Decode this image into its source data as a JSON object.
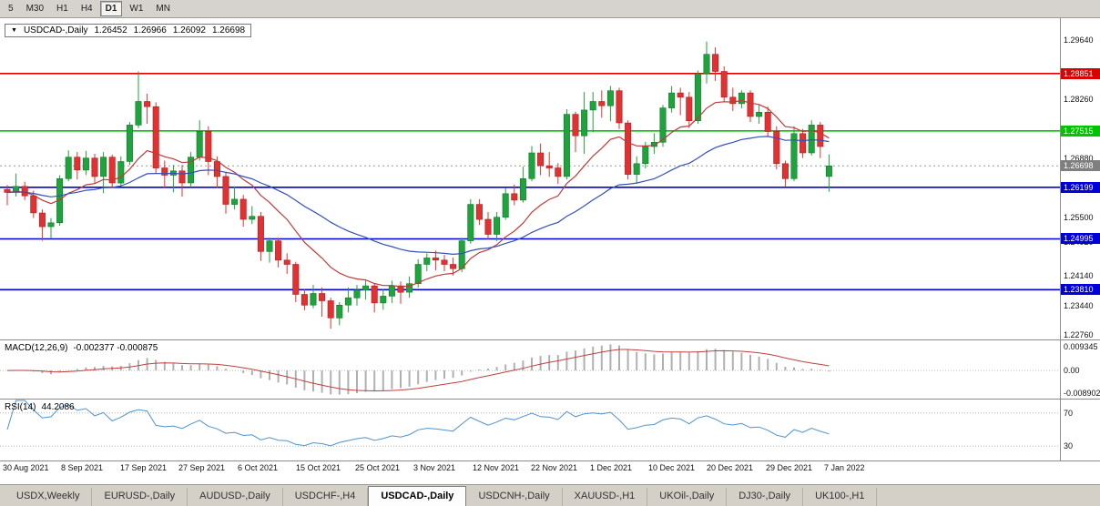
{
  "toolbar": {
    "timeframes": [
      {
        "label": "5",
        "active": false
      },
      {
        "label": "M30",
        "active": false
      },
      {
        "label": "H1",
        "active": false
      },
      {
        "label": "H4",
        "active": false
      },
      {
        "label": "D1",
        "active": true
      },
      {
        "label": "W1",
        "active": false
      },
      {
        "label": "MN",
        "active": false
      }
    ]
  },
  "chart_header": {
    "symbol": "USDCAD-,Daily",
    "open": "1.26452",
    "high": "1.26966",
    "low": "1.26092",
    "close": "1.26698"
  },
  "tabs": {
    "items": [
      "USDX,Weekly",
      "EURUSD-,Daily",
      "AUDUSD-,Daily",
      "USDCHF-,H4",
      "USDCAD-,Daily",
      "USDCNH-,Daily",
      "XAUUSD-,H1",
      "UKOil-,Daily",
      "DJ30-,Daily",
      "UK100-,H1"
    ],
    "active_index": 4
  },
  "chart_data": {
    "type": "candlestick",
    "title": "USDCAD-,Daily",
    "price_range": [
      1.2267,
      1.301
    ],
    "price_ticks": [
      "1.29640",
      "1.28260",
      "1.26880",
      "1.25500",
      "1.24920",
      "1.24140",
      "1.23440",
      "1.22760"
    ],
    "x_labels": [
      "30 Aug 2021",
      "8 Sep 2021",
      "17 Sep 2021",
      "27 Sep 2021",
      "6 Oct 2021",
      "15 Oct 2021",
      "25 Oct 2021",
      "3 Nov 2021",
      "12 Nov 2021",
      "22 Nov 2021",
      "1 Dec 2021",
      "10 Dec 2021",
      "20 Dec 2021",
      "29 Dec 2021",
      "7 Jan 2022"
    ],
    "horizontal_lines": [
      {
        "price": 1.28851,
        "label": "1.28851",
        "color": "#dd0000"
      },
      {
        "price": 1.27515,
        "label": "1.27515",
        "color": "#00c400"
      },
      {
        "price": 1.26199,
        "label": "1.26199",
        "color": "#0000dd"
      },
      {
        "price": 1.24995,
        "label": "1.24995",
        "color": "#0000dd"
      },
      {
        "price": 1.2381,
        "label": "1.23810",
        "color": "#0000dd"
      }
    ],
    "current_price": {
      "value": 1.26698,
      "label": "1.26698",
      "color": "#7f7f7f"
    },
    "colors": {
      "up": "#1fa33c",
      "up_stroke": "#127a29",
      "down": "#e03232",
      "down_stroke": "#b01b1b"
    },
    "overlays": [
      {
        "name": "ma-fast",
        "type": "ema",
        "period": 12,
        "color": "#c03a3a"
      },
      {
        "name": "ma-slow",
        "type": "ema",
        "period": 34,
        "color": "#3352b5"
      }
    ],
    "macd": {
      "label": "MACD(12,26,9)",
      "values": "-0.002377 -0.000875",
      "fast": 12,
      "slow": 26,
      "signal": 9,
      "axis_max": "0.009345",
      "axis_zero": "0.00",
      "axis_min": "-0.008902",
      "hist_color": "#b0b0b0",
      "signal_color": "#c04040"
    },
    "rsi": {
      "label": "RSI(14)",
      "value": "44.2086",
      "period": 14,
      "levels": [
        "70",
        "30"
      ],
      "color": "#4f94cd"
    },
    "candles": [
      [
        1.2615,
        1.2625,
        1.2578,
        1.2608
      ],
      [
        1.2608,
        1.2652,
        1.2598,
        1.2622
      ],
      [
        1.2622,
        1.2633,
        1.259,
        1.26
      ],
      [
        1.26,
        1.2612,
        1.2548,
        1.256
      ],
      [
        1.256,
        1.2568,
        1.2495,
        1.2528
      ],
      [
        1.2528,
        1.2548,
        1.25,
        1.2537
      ],
      [
        1.2537,
        1.2648,
        1.253,
        1.264
      ],
      [
        1.264,
        1.2706,
        1.2634,
        1.269
      ],
      [
        1.269,
        1.2702,
        1.2638,
        1.266
      ],
      [
        1.266,
        1.2705,
        1.2648,
        1.2688
      ],
      [
        1.2688,
        1.2698,
        1.2628,
        1.2645
      ],
      [
        1.2645,
        1.2702,
        1.2606,
        1.269
      ],
      [
        1.269,
        1.2696,
        1.2618,
        1.263
      ],
      [
        1.263,
        1.2692,
        1.2622,
        1.268
      ],
      [
        1.268,
        1.2772,
        1.2672,
        1.2765
      ],
      [
        1.2765,
        1.289,
        1.2758,
        1.282
      ],
      [
        1.282,
        1.2838,
        1.2768,
        1.2808
      ],
      [
        1.2808,
        1.2818,
        1.2652,
        1.2665
      ],
      [
        1.2665,
        1.2682,
        1.2618,
        1.2648
      ],
      [
        1.2648,
        1.2672,
        1.2608,
        1.2658
      ],
      [
        1.2658,
        1.2672,
        1.2598,
        1.263
      ],
      [
        1.263,
        1.2702,
        1.262,
        1.269
      ],
      [
        1.269,
        1.2776,
        1.2682,
        1.275
      ],
      [
        1.275,
        1.2762,
        1.2648,
        1.268
      ],
      [
        1.268,
        1.2692,
        1.2618,
        1.2645
      ],
      [
        1.2645,
        1.2656,
        1.2558,
        1.258
      ],
      [
        1.258,
        1.2622,
        1.2568,
        1.2592
      ],
      [
        1.2592,
        1.2602,
        1.2528,
        1.2545
      ],
      [
        1.2545,
        1.2576,
        1.2534,
        1.2552
      ],
      [
        1.2552,
        1.2562,
        1.2448,
        1.247
      ],
      [
        1.247,
        1.2502,
        1.2444,
        1.2495
      ],
      [
        1.2495,
        1.2502,
        1.2433,
        1.245
      ],
      [
        1.245,
        1.2466,
        1.2418,
        1.244
      ],
      [
        1.244,
        1.2446,
        1.2352,
        1.237
      ],
      [
        1.237,
        1.2382,
        1.2333,
        1.2345
      ],
      [
        1.2345,
        1.2392,
        1.2338,
        1.2372
      ],
      [
        1.2372,
        1.2386,
        1.2318,
        1.2355
      ],
      [
        1.2355,
        1.2362,
        1.229,
        1.2315
      ],
      [
        1.2315,
        1.2352,
        1.2298,
        1.2345
      ],
      [
        1.2345,
        1.2386,
        1.2328,
        1.2362
      ],
      [
        1.2362,
        1.2392,
        1.2344,
        1.238
      ],
      [
        1.238,
        1.2402,
        1.2358,
        1.239
      ],
      [
        1.239,
        1.2396,
        1.2328,
        1.235
      ],
      [
        1.235,
        1.2382,
        1.2334,
        1.2366
      ],
      [
        1.2366,
        1.2402,
        1.235,
        1.239
      ],
      [
        1.239,
        1.24,
        1.2348,
        1.2375
      ],
      [
        1.2375,
        1.2412,
        1.2362,
        1.2395
      ],
      [
        1.2395,
        1.2452,
        1.2386,
        1.244
      ],
      [
        1.244,
        1.2466,
        1.2424,
        1.2455
      ],
      [
        1.2455,
        1.2472,
        1.2426,
        1.245
      ],
      [
        1.245,
        1.2462,
        1.2424,
        1.244
      ],
      [
        1.244,
        1.2456,
        1.2414,
        1.243
      ],
      [
        1.243,
        1.2502,
        1.2422,
        1.2495
      ],
      [
        1.2495,
        1.2592,
        1.2488,
        1.258
      ],
      [
        1.258,
        1.2592,
        1.2532,
        1.2545
      ],
      [
        1.2545,
        1.2562,
        1.2498,
        1.251
      ],
      [
        1.251,
        1.2562,
        1.2494,
        1.255
      ],
      [
        1.255,
        1.2618,
        1.2544,
        1.2605
      ],
      [
        1.2605,
        1.2626,
        1.2578,
        1.259
      ],
      [
        1.259,
        1.2668,
        1.2584,
        1.264
      ],
      [
        1.264,
        1.2716,
        1.2634,
        1.27
      ],
      [
        1.27,
        1.2722,
        1.2648,
        1.267
      ],
      [
        1.267,
        1.2702,
        1.2644,
        1.2665
      ],
      [
        1.2665,
        1.2676,
        1.2628,
        1.2645
      ],
      [
        1.2645,
        1.2802,
        1.2638,
        1.279
      ],
      [
        1.279,
        1.2796,
        1.2702,
        1.274
      ],
      [
        1.274,
        1.2842,
        1.2698,
        1.28
      ],
      [
        1.28,
        1.2842,
        1.2748,
        1.282
      ],
      [
        1.282,
        1.2846,
        1.2782,
        1.281
      ],
      [
        1.281,
        1.2856,
        1.2774,
        1.2845
      ],
      [
        1.2845,
        1.2852,
        1.2756,
        1.277
      ],
      [
        1.277,
        1.2776,
        1.2638,
        1.265
      ],
      [
        1.265,
        1.2692,
        1.2628,
        1.2675
      ],
      [
        1.2675,
        1.2726,
        1.2664,
        1.2715
      ],
      [
        1.2715,
        1.2746,
        1.2698,
        1.2725
      ],
      [
        1.2725,
        1.2812,
        1.2714,
        1.2805
      ],
      [
        1.2805,
        1.2856,
        1.2794,
        1.284
      ],
      [
        1.284,
        1.2852,
        1.2788,
        1.283
      ],
      [
        1.283,
        1.2842,
        1.2758,
        1.2775
      ],
      [
        1.2775,
        1.2892,
        1.2768,
        1.2885
      ],
      [
        1.2885,
        1.296,
        1.2862,
        1.293
      ],
      [
        1.293,
        1.2946,
        1.2868,
        1.289
      ],
      [
        1.289,
        1.2902,
        1.2818,
        1.283
      ],
      [
        1.283,
        1.2852,
        1.2798,
        1.2815
      ],
      [
        1.2815,
        1.2846,
        1.2804,
        1.284
      ],
      [
        1.284,
        1.2846,
        1.2772,
        1.2785
      ],
      [
        1.2785,
        1.2812,
        1.2768,
        1.2795
      ],
      [
        1.2795,
        1.2808,
        1.2738,
        1.275
      ],
      [
        1.275,
        1.2762,
        1.2662,
        1.2675
      ],
      [
        1.2675,
        1.2682,
        1.2622,
        1.264
      ],
      [
        1.264,
        1.2762,
        1.2634,
        1.2745
      ],
      [
        1.2745,
        1.2756,
        1.2688,
        1.27
      ],
      [
        1.27,
        1.2776,
        1.2694,
        1.2765
      ],
      [
        1.2765,
        1.2772,
        1.2688,
        1.2715
      ],
      [
        1.26452,
        1.26966,
        1.26092,
        1.26698
      ]
    ]
  }
}
